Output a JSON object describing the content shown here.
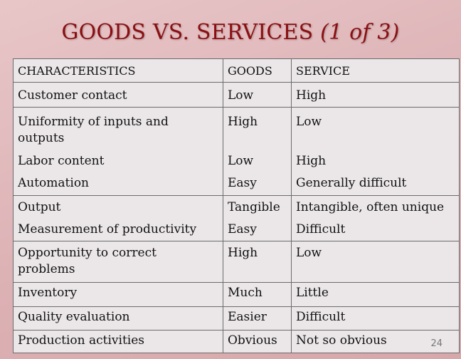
{
  "slide": {
    "title_main": "GOODS VS. SERVICES",
    "title_sub": "(1 of 3)",
    "page_number": "24"
  },
  "table": {
    "headers": [
      "CHARACTERISTICS",
      "GOODS",
      "SERVICE"
    ],
    "rows": [
      {
        "characteristic": "Customer contact",
        "goods": "Low",
        "service": "High"
      },
      {
        "characteristic": "Uniformity of inputs and outputs",
        "goods": "High",
        "service": "Low"
      },
      {
        "characteristic": "Labor content",
        "goods": "Low",
        "service": "High"
      },
      {
        "characteristic": "Automation",
        "goods": "Easy",
        "service": "Generally difficult"
      },
      {
        "characteristic": "Output",
        "goods": "Tangible",
        "service": "Intangible, often unique"
      },
      {
        "characteristic": "Measurement of productivity",
        "goods": "Easy",
        "service": "Difficult"
      },
      {
        "characteristic": "Opportunity to correct problems",
        "goods": "High",
        "service": "Low"
      },
      {
        "characteristic": "Inventory",
        "goods": "Much",
        "service": "Little"
      },
      {
        "characteristic": "Quality evaluation",
        "goods": "Easier",
        "service": "Difficult"
      },
      {
        "characteristic": "Production activities",
        "goods": "Obvious",
        "service": "Not so obvious"
      }
    ]
  }
}
